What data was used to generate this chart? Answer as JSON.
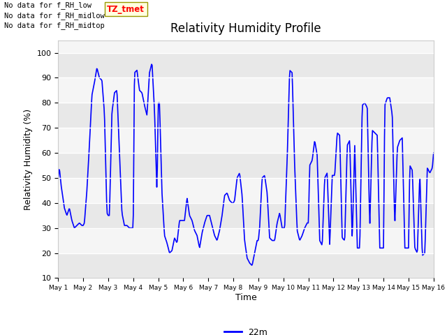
{
  "title": "Relativity Humidity Profile",
  "xlabel": "Time",
  "ylabel": "Relativity Humidity (%)",
  "ylim": [
    10,
    105
  ],
  "yticks": [
    10,
    20,
    30,
    40,
    50,
    60,
    70,
    80,
    90,
    100
  ],
  "line_color": "blue",
  "line_label": "22m",
  "fig_bg_color": "#ffffff",
  "plot_bg_color": "#f5f5f5",
  "band_colors": [
    "#e8e8e8",
    "#f5f5f5"
  ],
  "annotations": [
    "No data for f_RH_low",
    "No data for f_RH_midlow",
    "No data for f_RH_midtop"
  ],
  "tz_label": "TZ_tmet",
  "x_tick_labels": [
    "May 1",
    "May 2",
    "May 3",
    "May 4",
    "May 5",
    "May 6",
    "May 7",
    "May 8",
    "May 9",
    "May 10",
    "May 11",
    "May 12",
    "May 13",
    "May 14",
    "May 15",
    "May 16"
  ],
  "num_days": 15,
  "key_times": [
    0,
    0.05,
    0.12,
    0.18,
    0.25,
    0.35,
    0.45,
    0.55,
    0.65,
    0.75,
    0.85,
    0.95,
    1.0,
    1.05,
    1.15,
    1.25,
    1.35,
    1.45,
    1.55,
    1.65,
    1.75,
    1.85,
    1.95,
    2.0,
    2.05,
    2.15,
    2.25,
    2.35,
    2.45,
    2.55,
    2.65,
    2.75,
    2.85,
    2.95,
    3.0,
    3.05,
    3.15,
    3.25,
    3.35,
    3.45,
    3.55,
    3.65,
    3.75,
    3.85,
    3.95,
    4.0,
    4.05,
    4.15,
    4.25,
    4.35,
    4.45,
    4.55,
    4.65,
    4.75,
    4.85,
    4.95,
    5.0,
    5.05,
    5.15,
    5.25,
    5.35,
    5.45,
    5.55,
    5.65,
    5.75,
    5.85,
    5.95,
    6.0,
    6.05,
    6.15,
    6.25,
    6.35,
    6.45,
    6.55,
    6.65,
    6.75,
    6.85,
    6.95,
    7.0,
    7.05,
    7.15,
    7.25,
    7.35,
    7.45,
    7.55,
    7.65,
    7.75,
    7.85,
    7.95,
    8.0,
    8.05,
    8.15,
    8.25,
    8.35,
    8.45,
    8.55,
    8.65,
    8.75,
    8.85,
    8.95,
    9.0,
    9.05,
    9.15,
    9.25,
    9.35,
    9.45,
    9.55,
    9.65,
    9.75,
    9.85,
    9.95,
    10.0,
    10.05,
    10.15,
    10.25,
    10.35,
    10.45,
    10.55,
    10.65,
    10.75,
    10.85,
    10.95,
    11.0,
    11.05,
    11.15,
    11.25,
    11.35,
    11.45,
    11.55,
    11.65,
    11.75,
    11.85,
    11.95,
    12.0,
    12.05,
    12.15,
    12.25,
    12.35,
    12.45,
    12.55,
    12.65,
    12.75,
    12.85,
    12.95,
    13.0,
    13.05,
    13.15,
    13.25,
    13.35,
    13.45,
    13.55,
    13.65,
    13.75,
    13.85,
    13.95,
    14.0,
    14.05,
    14.15,
    14.25,
    14.35,
    14.45,
    14.55,
    14.65,
    14.75,
    14.85,
    14.95,
    15.0
  ],
  "key_values": [
    50,
    54,
    47,
    43,
    38,
    35,
    38,
    33,
    30,
    31,
    32,
    31,
    31,
    32,
    45,
    63,
    83,
    88,
    94,
    90,
    89,
    76,
    36,
    35,
    35,
    76,
    84,
    85,
    60,
    36,
    31,
    31,
    30,
    30,
    30,
    92,
    93,
    85,
    84,
    79,
    75,
    92,
    96,
    77,
    44,
    80,
    80,
    44,
    27,
    24,
    20,
    21,
    26,
    24,
    33,
    33,
    33,
    33,
    42,
    35,
    33,
    29,
    27,
    22,
    28,
    32,
    35,
    35,
    35,
    31,
    27,
    25,
    29,
    35,
    43,
    44,
    41,
    40,
    40,
    41,
    50,
    52,
    43,
    25,
    18,
    16,
    15,
    20,
    25,
    25,
    30,
    50,
    51,
    44,
    26,
    25,
    25,
    32,
    36,
    30,
    30,
    30,
    57,
    93,
    92,
    55,
    29,
    25,
    27,
    30,
    32,
    32,
    55,
    57,
    65,
    59,
    25,
    23,
    50,
    52,
    23,
    51,
    51,
    51,
    68,
    67,
    26,
    25,
    63,
    65,
    25,
    63,
    22,
    22,
    22,
    79,
    80,
    78,
    30,
    69,
    68,
    67,
    22,
    22,
    22,
    79,
    82,
    82,
    75,
    31,
    62,
    65,
    66,
    22,
    22,
    22,
    55,
    53,
    22,
    20,
    52,
    19,
    20,
    54,
    52,
    54,
    60
  ]
}
